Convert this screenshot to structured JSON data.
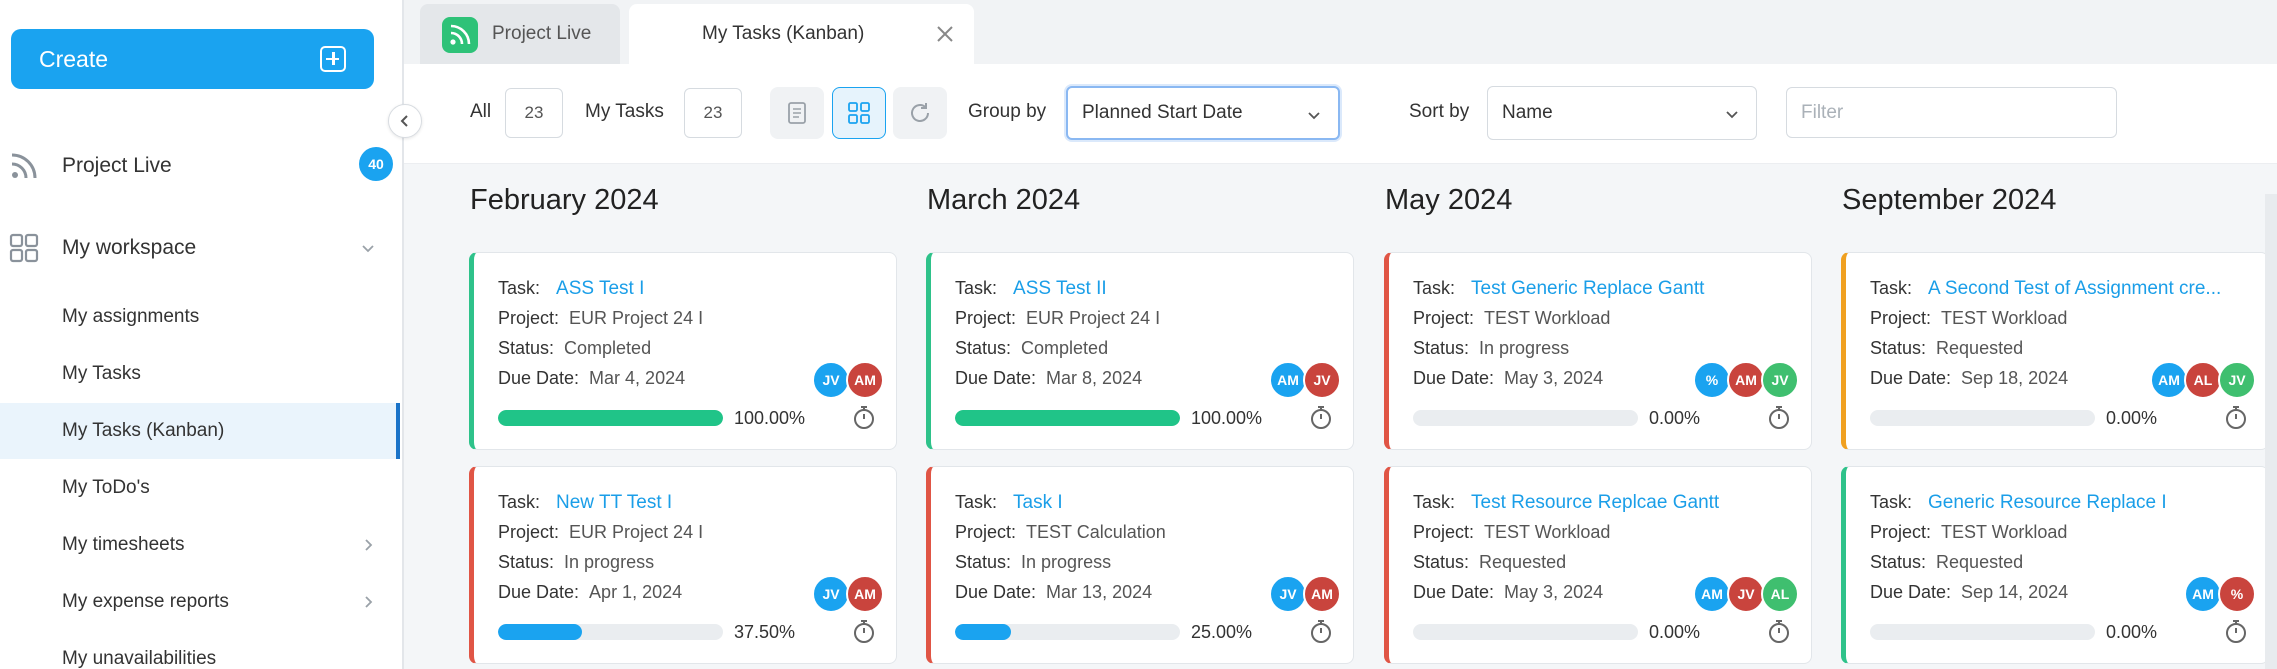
{
  "sidebar": {
    "create_label": "Create",
    "project_live": {
      "label": "Project Live",
      "badge": "40"
    },
    "workspace_label": "My workspace",
    "items": [
      {
        "label": "My assignments"
      },
      {
        "label": "My Tasks"
      },
      {
        "label": "My Tasks (Kanban)"
      },
      {
        "label": "My ToDo's"
      },
      {
        "label": "My timesheets"
      },
      {
        "label": "My expense reports"
      },
      {
        "label": "My unavailabilities"
      }
    ]
  },
  "tabs": [
    {
      "label": "Project Live"
    },
    {
      "label": "My Tasks (Kanban)"
    }
  ],
  "toolbar": {
    "all_label": "All",
    "all_count": "23",
    "my_tasks_label": "My Tasks",
    "my_tasks_count": "23",
    "group_by_label": "Group by",
    "group_by_value": "Planned Start Date",
    "sort_by_label": "Sort by",
    "sort_by_value": "Name",
    "filter_placeholder": "Filter"
  },
  "field_labels": {
    "task": "Task:",
    "project": "Project:",
    "status": "Status:",
    "due": "Due Date:"
  },
  "columns": [
    {
      "title": "February 2024",
      "cards": [
        {
          "task": "ASS Test I",
          "project": "EUR Project 24 I",
          "status": "Completed",
          "due": "Mar 4, 2024",
          "avatars": [
            {
              "i": "JV",
              "c": "blue"
            },
            {
              "i": "AM",
              "c": "red"
            }
          ],
          "progress": 100,
          "progress_label": "100.00%",
          "color": "green"
        },
        {
          "task": "New TT Test I",
          "project": "EUR Project 24 I",
          "status": "In progress",
          "due": "Apr 1, 2024",
          "avatars": [
            {
              "i": "JV",
              "c": "blue"
            },
            {
              "i": "AM",
              "c": "red"
            }
          ],
          "progress": 37.5,
          "progress_label": "37.50%",
          "color": "red"
        }
      ]
    },
    {
      "title": "March 2024",
      "cards": [
        {
          "task": "ASS Test II",
          "project": "EUR Project 24 I",
          "status": "Completed",
          "due": "Mar 8, 2024",
          "avatars": [
            {
              "i": "AM",
              "c": "blue"
            },
            {
              "i": "JV",
              "c": "red"
            }
          ],
          "progress": 100,
          "progress_label": "100.00%",
          "color": "green"
        },
        {
          "task": "Task I",
          "project": "TEST Calculation",
          "status": "In progress",
          "due": "Mar 13, 2024",
          "avatars": [
            {
              "i": "JV",
              "c": "blue"
            },
            {
              "i": "AM",
              "c": "red"
            }
          ],
          "progress": 25,
          "progress_label": "25.00%",
          "color": "red"
        }
      ]
    },
    {
      "title": "May 2024",
      "cards": [
        {
          "task": "Test Generic Replace Gantt",
          "project": "TEST Workload",
          "status": "In progress",
          "due": "May 3, 2024",
          "avatars": [
            {
              "i": "%",
              "c": "blue"
            },
            {
              "i": "AM",
              "c": "red"
            },
            {
              "i": "JV",
              "c": "green"
            }
          ],
          "progress": 0,
          "progress_label": "0.00%",
          "color": "red"
        },
        {
          "task": "Test Resource Replcae Gantt",
          "project": "TEST Workload",
          "status": "Requested",
          "due": "May 3, 2024",
          "avatars": [
            {
              "i": "AM",
              "c": "blue"
            },
            {
              "i": "JV",
              "c": "red"
            },
            {
              "i": "AL",
              "c": "green"
            }
          ],
          "progress": 0,
          "progress_label": "0.00%",
          "color": "red"
        }
      ]
    },
    {
      "title": "September 2024",
      "cards": [
        {
          "task": "A Second Test of Assignment cre...",
          "project": "TEST Workload",
          "status": "Requested",
          "due": "Sep 18, 2024",
          "avatars": [
            {
              "i": "AM",
              "c": "blue"
            },
            {
              "i": "AL",
              "c": "red"
            },
            {
              "i": "JV",
              "c": "green"
            }
          ],
          "progress": 0,
          "progress_label": "0.00%",
          "color": "orange"
        },
        {
          "task": "Generic Resource Replace I",
          "project": "TEST Workload",
          "status": "Requested",
          "due": "Sep 14, 2024",
          "avatars": [
            {
              "i": "AM",
              "c": "blue"
            },
            {
              "i": "%",
              "c": "red"
            }
          ],
          "progress": 0,
          "progress_label": "0.00%",
          "color": "green"
        }
      ]
    }
  ]
}
